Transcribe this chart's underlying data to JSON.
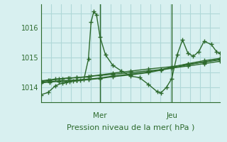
{
  "bg_color": "#d8f0f0",
  "grid_color": "#b0d8d8",
  "line_color": "#2d6a2d",
  "ylabel_tick": [
    1014,
    1015,
    1016
  ],
  "xlabel": "Pression niveau de la mer( hPa )",
  "day_labels": [
    "Mer",
    "Jeu"
  ],
  "day_positions": [
    0.33,
    0.73
  ],
  "series": [
    [
      0.0,
      1013.75,
      0.04,
      1013.83,
      0.08,
      1014.05,
      0.12,
      1014.15,
      0.14,
      1014.18,
      0.16,
      1014.2,
      0.18,
      1014.22,
      0.2,
      1014.23,
      0.22,
      1014.25,
      0.24,
      1014.27,
      0.265,
      1014.95,
      0.28,
      1016.2,
      0.295,
      1016.55,
      0.31,
      1016.45,
      0.33,
      1015.7,
      0.36,
      1015.1,
      0.4,
      1014.75,
      0.45,
      1014.55,
      0.5,
      1014.38,
      0.55,
      1014.33,
      0.6,
      1014.1,
      0.65,
      1013.85,
      0.67,
      1013.82,
      0.7,
      1014.0,
      0.73,
      1014.3,
      0.76,
      1015.1,
      0.79,
      1015.6,
      0.82,
      1015.15,
      0.85,
      1015.05,
      0.88,
      1015.2,
      0.91,
      1015.55,
      0.95,
      1015.45,
      0.98,
      1015.2,
      1.0,
      1015.15
    ],
    [
      0.0,
      1014.22,
      0.04,
      1014.25,
      0.08,
      1014.28,
      0.12,
      1014.3,
      0.16,
      1014.32,
      0.2,
      1014.33,
      0.265,
      1014.35,
      0.28,
      1014.38,
      0.33,
      1014.4,
      0.4,
      1014.44,
      0.5,
      1014.5,
      0.6,
      1014.56,
      0.67,
      1014.6,
      0.73,
      1014.65,
      0.82,
      1014.72,
      0.91,
      1014.8,
      1.0,
      1014.88
    ],
    [
      0.0,
      1014.2,
      0.05,
      1014.24,
      0.1,
      1014.28,
      0.15,
      1014.31,
      0.2,
      1014.33,
      0.265,
      1014.37,
      0.33,
      1014.42,
      0.4,
      1014.48,
      0.5,
      1014.55,
      0.6,
      1014.62,
      0.73,
      1014.7,
      0.82,
      1014.78,
      0.91,
      1014.85,
      1.0,
      1014.93
    ],
    [
      0.0,
      1014.18,
      0.05,
      1014.2,
      0.1,
      1014.22,
      0.2,
      1014.25,
      0.265,
      1014.28,
      0.33,
      1014.32,
      0.4,
      1014.38,
      0.5,
      1014.45,
      0.6,
      1014.52,
      0.67,
      1014.6,
      0.73,
      1014.68,
      0.82,
      1014.8,
      0.91,
      1014.9,
      1.0,
      1014.98
    ],
    [
      0.0,
      1014.15,
      0.05,
      1014.18,
      0.1,
      1014.2,
      0.2,
      1014.23,
      0.265,
      1014.26,
      0.33,
      1014.3,
      0.4,
      1014.36,
      0.5,
      1014.42,
      0.6,
      1014.5,
      0.67,
      1014.58,
      0.73,
      1014.65,
      0.82,
      1014.76,
      0.91,
      1014.86,
      1.0,
      1014.95
    ]
  ],
  "xlim": [
    0,
    1.0
  ],
  "ylim": [
    1013.5,
    1016.8
  ],
  "figsize": [
    3.2,
    2.0
  ],
  "dpi": 100
}
